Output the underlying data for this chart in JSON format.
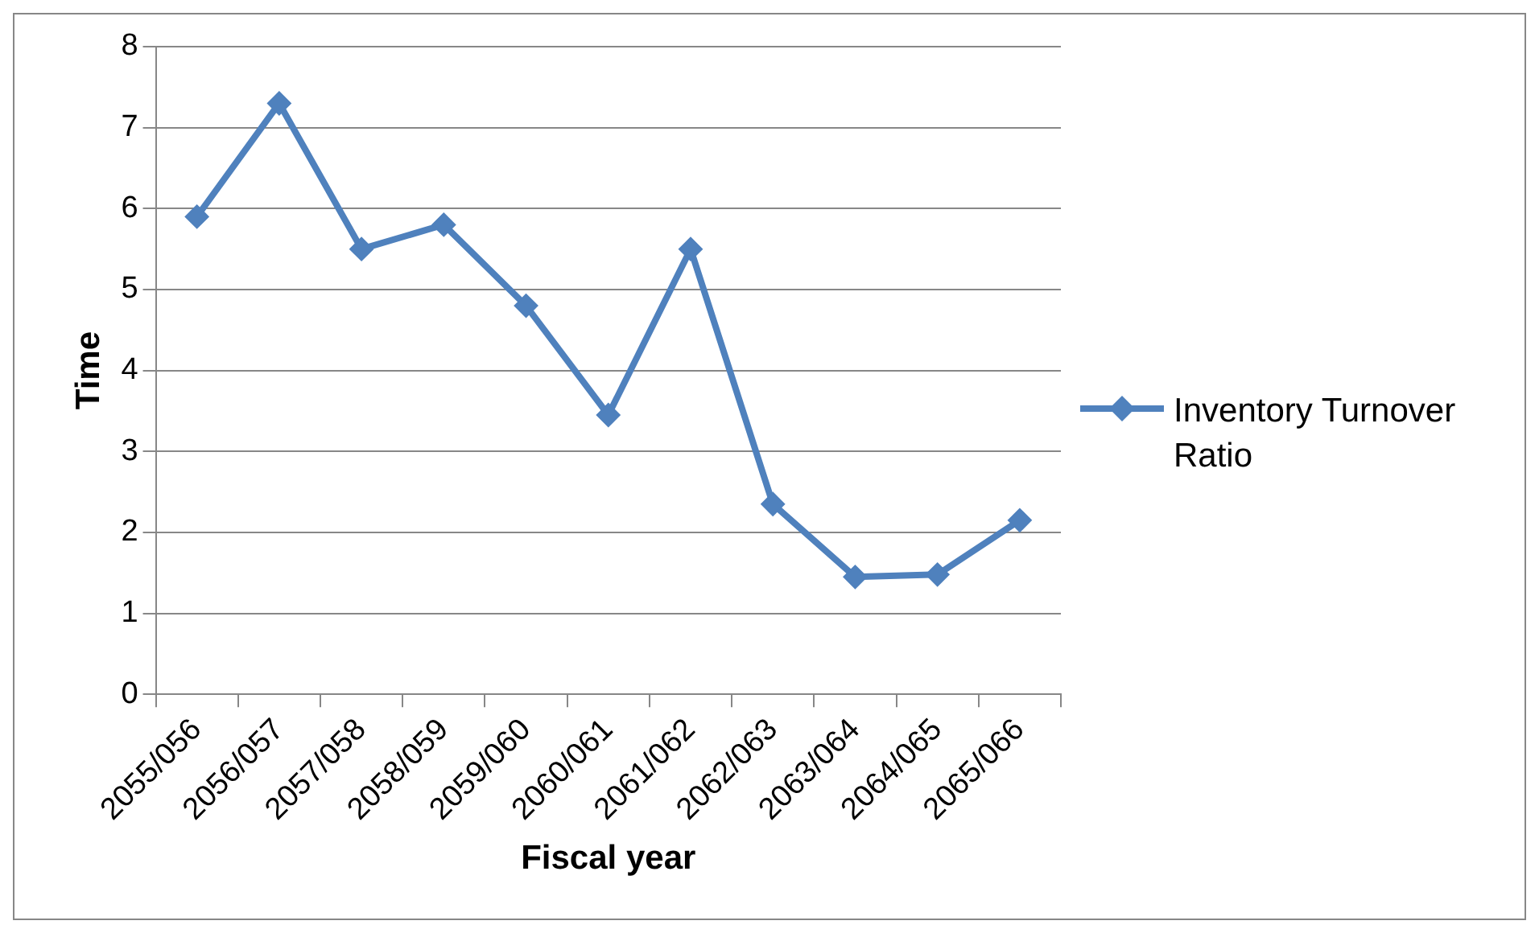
{
  "chart_data": {
    "type": "line",
    "xlabel": "Fiscal year",
    "ylabel": "Time",
    "categories": [
      "2055/056",
      "2056/057",
      "2057/058",
      "2058/059",
      "2059/060",
      "2060/061",
      "2061/062",
      "2062/063",
      "2063/064",
      "2064/065",
      "2065/066"
    ],
    "series": [
      {
        "name": "Inventory Turnover Ratio",
        "color": "#4f81bd",
        "values": [
          5.9,
          7.3,
          5.5,
          5.8,
          4.8,
          3.45,
          5.5,
          2.35,
          1.45,
          1.48,
          2.15
        ]
      }
    ],
    "ylim": [
      0,
      8
    ],
    "yticks": [
      0,
      1,
      2,
      3,
      4,
      5,
      6,
      7,
      8
    ],
    "grid": "y",
    "legend": "right",
    "marker": "diamond",
    "line_style": "solid"
  }
}
